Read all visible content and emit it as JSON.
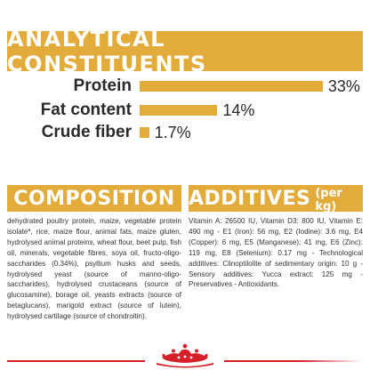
{
  "analytics": {
    "title": "ANALYTICAL CONSTITUENTS",
    "rows": [
      {
        "label": "Protein",
        "value": "33%",
        "percent": 33
      },
      {
        "label": "Fat content",
        "value": "14%",
        "percent": 14
      },
      {
        "label": "Crude fiber",
        "value": "1.7%",
        "percent": 1.7
      }
    ]
  },
  "composition": {
    "title": "COMPOSITION",
    "text": "dehydrated poultry protein, maize, vegetable protein isolate*, rice, maize flour, animal fats, maize gluten, hydrolysed animal proteins, wheat flour, beet pulp, fish oil, minerals, vegetable fibres, soya oil, fructo-oligo-saccharides (0.34%), psyllium husks and seeds, hydrolysed yeast (source of manno-oligo-saccharides), hydrolysed crustaceans (source of glucosamine), borage oil, yeasts extracts (source of betaglucans), marigold extract (source of lutein), hydrolysed cartilage (source of chondroitin)."
  },
  "additives": {
    "title": "ADDITIVES",
    "subtitle": "(per kg)",
    "text": "Vitamin A: 26500 IU, Vitamin D3: 800 IU, Vitamin E: 490 mg - E1 (Iron): 56 mg, E2 (Iodine): 3.6 mg, E4 (Copper): 6 mg, E5 (Manganese): 41 mg, E6 (Zinc): 119 mg, E8 (Selenium): 0.17 mg - Technological additives: Clinoptilolite of sedimentary origin: 10 g - Sensory additives: Yucca extract: 125 mg - Preservatives - Antioxidants."
  },
  "colors": {
    "accent": "#e3ac3a",
    "brand_red": "#d5202a",
    "text": "#2a2a2a"
  },
  "footer": {
    "logo_icon": "royal-canin-crown-icon"
  }
}
